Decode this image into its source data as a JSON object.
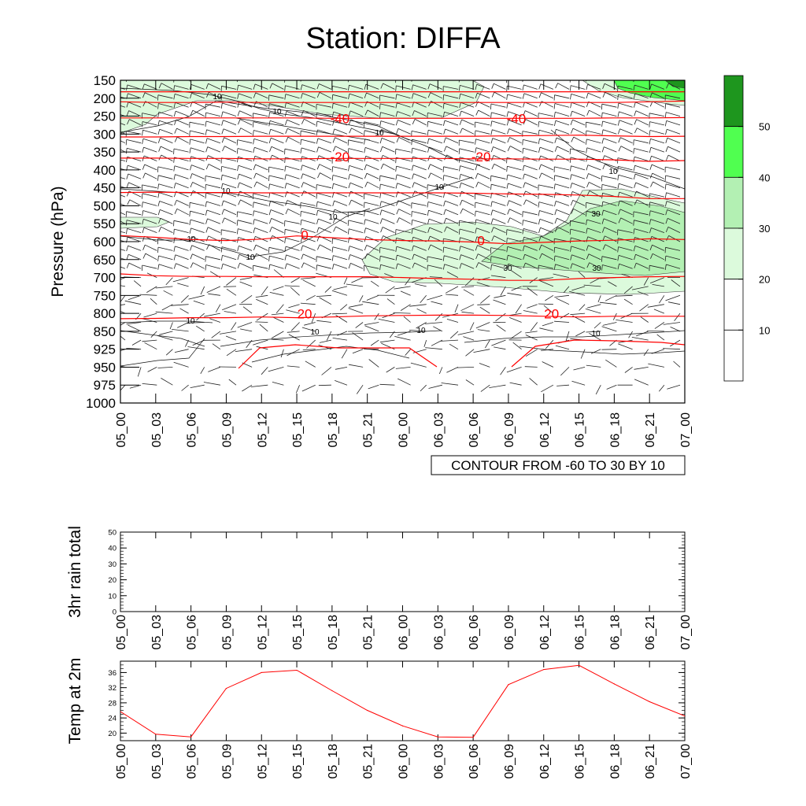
{
  "title": "Station: DIFFA",
  "colors": {
    "isotherm": "#ff0000",
    "wind_fill_levels": [
      "#ffffff",
      "#ffffff",
      "#dcfadc",
      "#b3f0b3",
      "#50ff50",
      "#1e961e"
    ],
    "temp_line": "#ff0000"
  },
  "time_labels": [
    "05_00",
    "05_03",
    "05_06",
    "05_09",
    "05_12",
    "05_15",
    "05_18",
    "05_21",
    "06_00",
    "06_03",
    "06_06",
    "06_09",
    "06_12",
    "06_15",
    "06_18",
    "06_21",
    "07_00"
  ],
  "chart_data": [
    {
      "name": "time-pressure-section",
      "type": "heatmap",
      "ylabel": "Pressure (hPa)",
      "pressure_ticks": [
        "150",
        "200",
        "250",
        "300",
        "350",
        "400",
        "450",
        "500",
        "550",
        "600",
        "650",
        "700",
        "750",
        "800",
        "850",
        "925",
        "950",
        "975",
        "1000"
      ],
      "contour_note": "CONTOUR FROM -60 TO 30 BY 10",
      "colorbar": {
        "labels": [
          "10",
          "20",
          "30",
          "40",
          "50"
        ],
        "levels": [
          0,
          10,
          20,
          30,
          40,
          50,
          60
        ]
      },
      "isotherms": [
        {
          "label": "-40",
          "pressure": [
            255,
            255,
            255,
            255,
            255,
            255,
            256,
            256,
            256,
            256,
            256,
            256,
            256,
            256,
            255,
            255,
            254
          ]
        },
        {
          "label": "-20",
          "pressure": [
            367,
            367,
            368,
            368,
            369,
            369,
            368,
            368,
            368,
            368,
            369,
            369,
            370,
            370,
            372,
            376,
            374
          ]
        },
        {
          "label": "0",
          "pressure": [
            583,
            588,
            594,
            597,
            593,
            584,
            589,
            594,
            597,
            598,
            601,
            606,
            602,
            598,
            596,
            592,
            594
          ]
        },
        {
          "label": "20",
          "pressure": [
            815,
            814,
            812,
            812,
            810,
            812,
            810,
            807,
            806,
            805,
            805,
            806,
            808,
            810,
            808,
            808,
            808
          ]
        },
        {
          "label": "-50",
          "pressure": [
            210,
            212,
            212,
            211,
            212,
            212,
            212,
            212,
            212,
            212,
            212,
            212,
            212,
            212,
            212,
            210,
            208
          ]
        },
        {
          "label": "-60",
          "pressure": [
            182,
            182,
            182,
            182,
            182,
            182,
            182,
            182,
            182,
            182,
            182,
            182,
            182,
            182,
            182,
            182,
            182
          ]
        },
        {
          "label": "-30",
          "pressure": [
            308,
            308,
            307,
            307,
            306,
            306,
            306,
            306,
            306,
            306,
            306,
            305,
            304,
            303,
            305,
            307,
            306
          ]
        },
        {
          "label": "-10",
          "pressure": [
            463,
            462,
            463,
            463,
            464,
            464,
            464,
            464,
            464,
            464,
            465,
            467,
            468,
            470,
            474,
            480,
            480
          ]
        },
        {
          "label": "10",
          "pressure": [
            690,
            695,
            697,
            697,
            698,
            698,
            698,
            698,
            700,
            703,
            705,
            708,
            708,
            703,
            700,
            698,
            697
          ]
        }
      ],
      "isotherm_labels": [
        {
          "text": "-40",
          "time": "05_18",
          "pressure": 265
        },
        {
          "text": "-40",
          "time": "06_09",
          "pressure": 265
        },
        {
          "text": "-20",
          "time": "05_18",
          "pressure": 372
        },
        {
          "text": "-20",
          "time": "06_06",
          "pressure": 372
        },
        {
          "text": "0",
          "time": "05_15",
          "pressure": 590
        },
        {
          "text": "0",
          "time": "06_06",
          "pressure": 605
        },
        {
          "text": "20",
          "time": "05_15",
          "pressure": 810
        },
        {
          "text": "20",
          "time": "06_12",
          "pressure": 810
        }
      ],
      "wind_contour_labels": [
        "10",
        "10",
        "10",
        "10",
        "10",
        "10",
        "10",
        "10",
        "10",
        "10",
        "10",
        "10",
        "10",
        "30",
        "30",
        "30"
      ]
    },
    {
      "name": "rain-3hr",
      "type": "line",
      "ylabel": "3hr rain total",
      "yticks": [
        "0",
        "10",
        "20",
        "30",
        "40",
        "50"
      ],
      "ylim": [
        0,
        50
      ],
      "values": [
        0,
        0,
        0,
        0,
        0,
        0,
        0,
        0,
        0,
        0,
        0,
        0,
        0,
        0,
        0,
        0,
        0
      ]
    },
    {
      "name": "temp-2m",
      "type": "line",
      "ylabel": "Temp at 2m",
      "yticks": [
        "20",
        "24",
        "28",
        "32",
        "36"
      ],
      "ylim": [
        18,
        39
      ],
      "values": [
        25.7,
        19.7,
        19.0,
        31.8,
        36.0,
        36.6,
        31.2,
        26.0,
        21.9,
        19.0,
        18.9,
        32.8,
        36.8,
        37.9,
        33.0,
        28.3,
        24.5
      ]
    }
  ]
}
